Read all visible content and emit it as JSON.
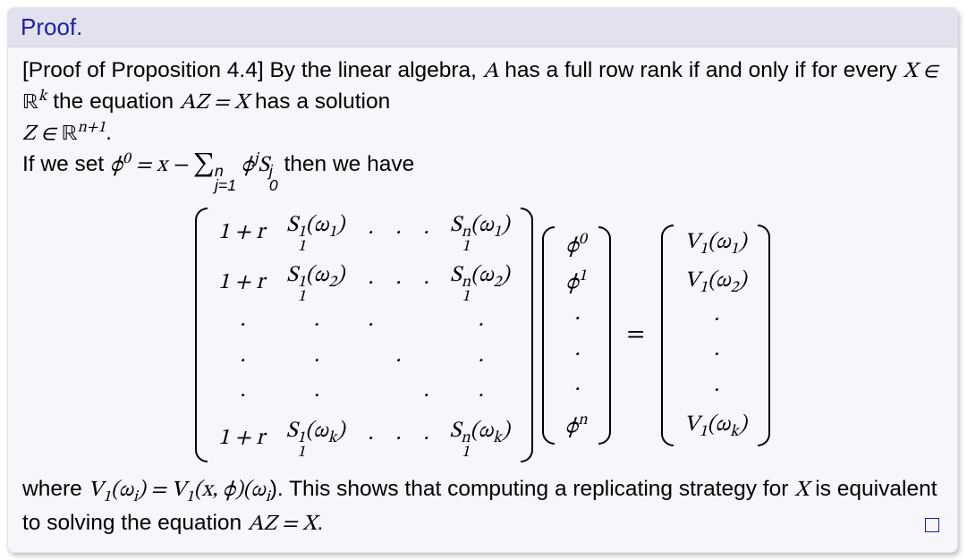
{
  "colors": {
    "box_bg": "#f6f6fb",
    "header_bg": "#e2e2ef",
    "header_text": "#2020a8",
    "body_text": "#000000",
    "shadow": "rgba(0,0,0,0.25)",
    "qed_border": "#2020a8"
  },
  "fontsize": {
    "header": 26,
    "body": 24.5,
    "matrix": 25
  },
  "header": "Proof.",
  "p1a": "[Proof of Proposition 4.4] By the linear algebra, ",
  "A": "A",
  "p1b": " has a full row rank if and only if for every ",
  "Xin": "X ∈ ",
  "Rk": "ℝ",
  "k": "k",
  "p1c": " the equation ",
  "eqAZX": "AZ = X",
  "p1d": " has a solution",
  "Zin": "Z ∈ ",
  "Rn1": "ℝ",
  "n1": "n+1",
  "dot1": ".",
  "p2a": "If we set ",
  "phi0": "ϕ",
  "phi0sup": "0",
  "eqxs_a": " = x − ",
  "sum_top": "n",
  "sum_bot": "j=1",
  "phij": " ϕ",
  "jlab": "j",
  "S": "S",
  "S_sub": "0",
  "S_sup": "j",
  "p2b": " then we have",
  "matrixA": {
    "rows": [
      [
        "1 + r",
        "S<span class='subsup'><span class='s-top'>1</span><span class='s-bot'>1</span></span>(ω<span class='sub'>1</span>)",
        "·",
        "·",
        "·",
        "S<span class='subsup'><span class='s-top'>n</span><span class='s-bot'>1</span></span>(ω<span class='sub'>1</span>)"
      ],
      [
        "1 + r",
        "S<span class='subsup'><span class='s-top'>1</span><span class='s-bot'>1</span></span>(ω<span class='sub'>2</span>)",
        "·",
        "·",
        "·",
        "S<span class='subsup'><span class='s-top'>n</span><span class='s-bot'>1</span></span>(ω<span class='sub'>2</span>)"
      ],
      [
        "·",
        "·",
        "·",
        "",
        "",
        "·"
      ],
      [
        "·",
        "·",
        "",
        "·",
        "",
        "·"
      ],
      [
        "·",
        "·",
        "",
        "",
        "·",
        "·"
      ],
      [
        "1 + r",
        "S<span class='subsup'><span class='s-top'>1</span><span class='s-bot'>1</span></span>(ω<span class='sub'>k</span>)",
        "·",
        "·",
        "·",
        "S<span class='subsup'><span class='s-top'>n</span><span class='s-bot'>1</span></span>(ω<span class='sub'>k</span>)"
      ]
    ]
  },
  "vecPhi": {
    "rows": [
      [
        "ϕ<span class='sup'>0</span>"
      ],
      [
        "ϕ<span class='sup'>1</span>"
      ],
      [
        "·"
      ],
      [
        "·"
      ],
      [
        "·"
      ],
      [
        "ϕ<span class='sup'>n</span>"
      ]
    ]
  },
  "vecV": {
    "rows": [
      [
        "V<span class='sub'>1</span>(ω<span class='sub'>1</span>)"
      ],
      [
        "V<span class='sub'>1</span>(ω<span class='sub'>2</span>)"
      ],
      [
        "·"
      ],
      [
        "·"
      ],
      [
        "·"
      ],
      [
        "V<span class='sub'>1</span>(ω<span class='sub'>k</span>)"
      ]
    ]
  },
  "eqSign": "=",
  "p3a": " where ",
  "V1wi": "V",
  "V1sub": "1",
  "p3b": "(ω",
  "isub": "i",
  "p3c": ") = V",
  "p3d": "(x, ϕ)(ω",
  "p3e": "). This shows that computing a replicating strategy for ",
  "Xlab": "X",
  "p3f": " is equivalent to solving the equation ",
  "eqAZX2": "AZ = X",
  "p3g": "."
}
